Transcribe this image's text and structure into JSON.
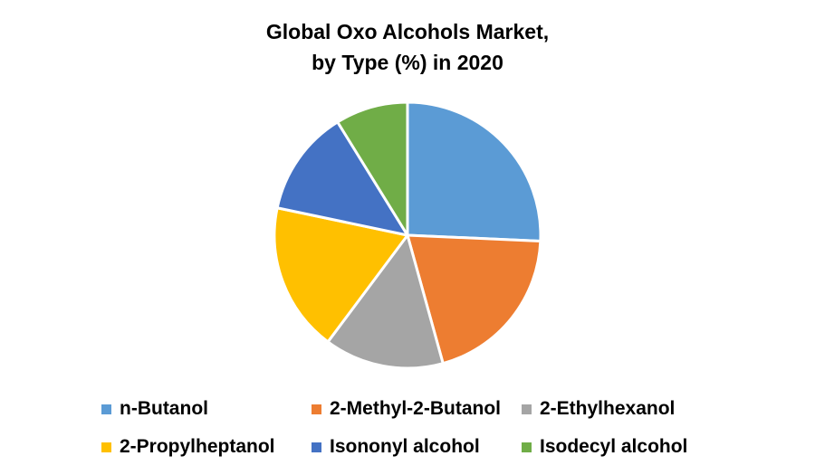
{
  "title": {
    "line1": "Global Oxo Alcohols Market,",
    "line2": "by Type (%) in 2020"
  },
  "legend": {
    "items": [
      {
        "label": "n-Butanol",
        "color": "#5B9BD5"
      },
      {
        "label": "2-Methyl-2-Butanol",
        "color": "#ED7D31"
      },
      {
        "label": "2-Ethylhexanol",
        "color": "#A5A5A5"
      },
      {
        "label": "2-Propylheptanol",
        "color": "#FFC000"
      },
      {
        "label": "Isononyl alcohol",
        "color": "#4472C4"
      },
      {
        "label": "Isodecyl alcohol",
        "color": "#70AD47"
      }
    ]
  },
  "chart_data": {
    "type": "pie",
    "title": "Global Oxo Alcohols Market, by Type (%) in 2020",
    "categories": [
      "n-Butanol",
      "2-Methyl-2-Butanol",
      "2-Ethylhexanol",
      "2-Propylheptanol",
      "Isononyl alcohol",
      "Isodecyl alcohol"
    ],
    "values": [
      25.7,
      20.0,
      14.5,
      18.1,
      12.9,
      8.8
    ],
    "colors": [
      "#5B9BD5",
      "#ED7D31",
      "#A5A5A5",
      "#FFC000",
      "#4472C4",
      "#70AD47"
    ],
    "start_angle": "12 o'clock, clockwise",
    "data_labels": false,
    "legend_position": "bottom"
  }
}
